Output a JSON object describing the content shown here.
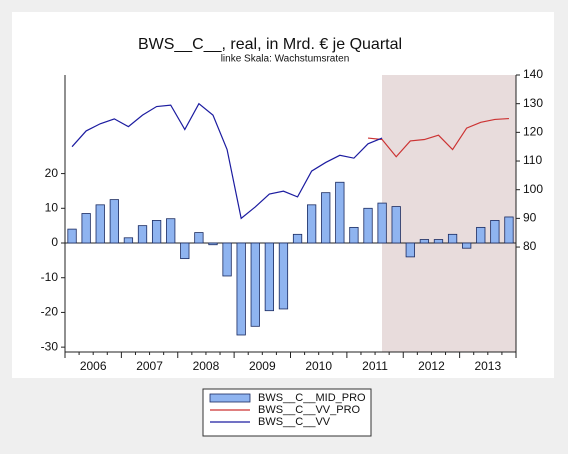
{
  "chart_data": {
    "type": "bar_line",
    "title": "BWS__C__, real, in Mrd. € je Quartal",
    "subtitle": "linke Skala: Wachstumsraten",
    "categories": [
      null,
      null,
      "2006",
      null,
      null,
      null,
      "2007",
      null,
      null,
      null,
      "2008",
      null,
      null,
      null,
      "2009",
      null,
      null,
      null,
      "2010",
      null,
      null,
      null,
      "2011",
      null,
      null,
      null,
      "2012",
      null,
      null,
      null,
      "2013",
      null
    ],
    "series": [
      {
        "name": "BWS__C__MID_PRO",
        "color": "#8fb4f0",
        "values": [
          4,
          8.5,
          11,
          12.5,
          1.5,
          5,
          6.5,
          7,
          -4.5,
          3,
          -0.5,
          -9.5,
          -26.5,
          -24,
          -19.5,
          -19,
          2.5,
          11,
          14.5,
          17.5,
          4.5,
          10,
          11.5,
          10.5,
          -4,
          1,
          1,
          2.5,
          -1.5,
          4.5,
          6.5,
          7.5
        ]
      },
      {
        "name": "BWS__C__VV_PRO",
        "color": "#cc3333",
        "axis": "y2",
        "values": [
          null,
          null,
          null,
          null,
          null,
          null,
          null,
          null,
          null,
          null,
          null,
          null,
          null,
          null,
          null,
          null,
          null,
          null,
          null,
          null,
          null,
          118,
          117.5,
          111.5,
          117,
          117.5,
          119,
          114,
          121.5,
          123.5,
          124.5,
          124.8
        ]
      },
      {
        "name": "BWS__C__VV",
        "color": "#1c1ca0",
        "axis": "y2",
        "values": [
          115,
          120.5,
          123,
          124.7,
          122,
          126,
          129,
          129.5,
          121,
          130,
          126,
          114,
          90,
          94,
          98.5,
          99.5,
          97.5,
          106.5,
          109.5,
          112,
          111,
          116,
          118,
          null,
          null,
          null,
          null,
          null,
          null,
          null,
          null,
          null
        ]
      }
    ],
    "ylim": [
      -31.4,
      48.4
    ],
    "yticks": [
      -30,
      -20,
      -10,
      0,
      10,
      20
    ],
    "y2lim": [
      43.4,
      140
    ],
    "y2ticks": [
      80,
      90,
      100,
      110,
      120,
      130,
      140
    ]
  }
}
